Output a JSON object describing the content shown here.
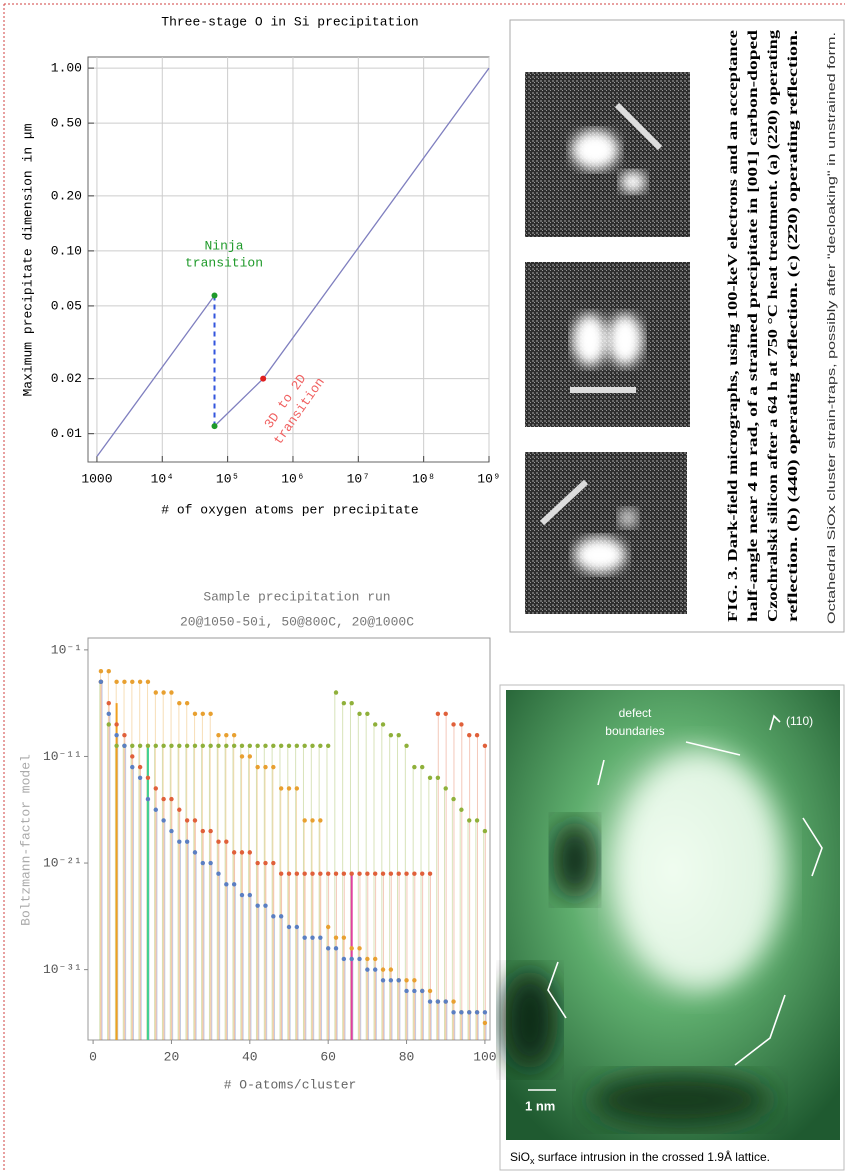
{
  "chart_data": [
    {
      "type": "line",
      "title": "Three-stage O in Si precipitation",
      "x_label": "# of oxygen atoms per precipitate",
      "y_label": "Maximum precipitate dimension in μm",
      "log_x": true,
      "log_y": true,
      "grid": true,
      "xlim": [
        730,
        1000000000
      ],
      "ylim": [
        0.007,
        1.15
      ],
      "xticks": [
        1000,
        {
          "value": 10000,
          "label": "10⁴"
        },
        {
          "value": 100000,
          "label": "10⁵"
        },
        {
          "value": 1000000,
          "label": "10⁶"
        },
        {
          "value": 10000000,
          "label": "10⁷"
        },
        {
          "value": 100000000,
          "label": "10⁸"
        },
        {
          "value": 1000000000,
          "label": "10⁹"
        }
      ],
      "yticks": [
        0.01,
        0.02,
        0.05,
        {
          "value": 0.1,
          "label": "0.10"
        },
        {
          "value": 0.2,
          "label": "0.20"
        },
        {
          "value": 0.5,
          "label": "0.50"
        },
        {
          "value": 1,
          "label": "1.00"
        }
      ],
      "series": [
        {
          "style": "line",
          "color": "#7f7fbf",
          "x": [
            1000,
            63000
          ],
          "values": [
            0.0075,
            0.057
          ]
        },
        {
          "style": "line",
          "color": "#7f7fbf",
          "x": [
            63000,
            350000,
            1000000000
          ],
          "values": [
            0.011,
            0.02,
            1.0
          ]
        },
        {
          "style": "dashed",
          "color": "#3355dd",
          "x": [
            63000,
            63000
          ],
          "values": [
            0.057,
            0.011
          ]
        },
        {
          "style": "points",
          "color": "#1f9a2a",
          "x": [
            63000,
            63000
          ],
          "values": [
            0.057,
            0.011
          ]
        },
        {
          "style": "points",
          "color": "#e02020",
          "x": [
            350000
          ],
          "values": [
            0.02
          ]
        }
      ],
      "annotations": [
        {
          "lines": [
            "Ninja",
            "transition"
          ],
          "color": "#1f9a2a"
        },
        {
          "lines": [
            "3D to 2D",
            "transition"
          ],
          "color": "#f06060"
        }
      ]
    },
    {
      "type": "scatter",
      "title": "Sample precipitation run",
      "subtitle": "20@1050-50i, 50@800C, 20@1000C",
      "x_label": "# O-atoms/cluster",
      "y_label": "Boltzmann-factor model",
      "log_y": true,
      "stems": true,
      "xlim": [
        -1.3,
        101.3
      ],
      "ylim": [
        2.5e-38,
        1.3
      ],
      "xticks": [
        0,
        20,
        40,
        60,
        80,
        100
      ],
      "yticks": [
        {
          "value": 0.1,
          "label": "10⁻¹"
        },
        {
          "value": 1e-11,
          "label": "10⁻¹¹"
        },
        {
          "value": 1e-21,
          "label": "10⁻²¹"
        },
        {
          "value": 1e-31,
          "label": "10⁻³¹"
        }
      ],
      "x": [
        2,
        4,
        6,
        8,
        10,
        12,
        14,
        16,
        18,
        20,
        22,
        24,
        26,
        28,
        30,
        32,
        34,
        36,
        38,
        40,
        42,
        44,
        46,
        48,
        50,
        52,
        54,
        56,
        58,
        60,
        62,
        64,
        66,
        68,
        70,
        72,
        74,
        76,
        78,
        80,
        82,
        84,
        86,
        88,
        90,
        92,
        94,
        96,
        98,
        100
      ],
      "series": [
        {
          "color": "#8fb03a",
          "values": [
            0.0001,
            1e-08,
            1e-10,
            1e-10,
            1e-10,
            1e-10,
            1e-10,
            1e-10,
            1e-10,
            1e-10,
            1e-10,
            1e-10,
            1e-10,
            1e-10,
            1e-10,
            1e-10,
            1e-10,
            1e-10,
            1e-10,
            1e-10,
            1e-10,
            1e-10,
            1e-10,
            1e-10,
            1e-10,
            1e-10,
            1e-10,
            1e-10,
            1e-10,
            1e-10,
            1e-05,
            1e-06,
            1e-06,
            1e-07,
            1e-07,
            1e-08,
            1e-08,
            1e-09,
            1e-09,
            1e-10,
            1e-12,
            1e-12,
            1e-13,
            1e-13,
            1e-14,
            1e-15,
            1e-16,
            1e-17,
            1e-17,
            1e-18
          ]
        },
        {
          "color": "#e8a030",
          "values": [
            0.001,
            0.001,
            0.0001,
            0.0001,
            0.0001,
            0.0001,
            0.0001,
            1e-05,
            1e-05,
            1e-05,
            1e-06,
            1e-06,
            1e-07,
            1e-07,
            1e-07,
            1e-09,
            1e-09,
            1e-09,
            1e-11,
            1e-11,
            1e-12,
            1e-12,
            1e-12,
            1e-14,
            1e-14,
            1e-14,
            1e-17,
            1e-17,
            1e-17,
            1e-27,
            1e-28,
            1e-28,
            1e-29,
            1e-29,
            1e-30,
            1e-30,
            1e-31,
            1e-31,
            1e-32,
            1e-32,
            1e-32,
            1e-33,
            1e-33,
            1e-34,
            1e-34,
            1e-34,
            1e-35,
            1e-35,
            1e-35,
            1e-36
          ]
        },
        {
          "color": "#e0603a",
          "values": [
            0.0001,
            1e-06,
            1e-08,
            1e-09,
            1e-11,
            1e-12,
            1e-13,
            1e-14,
            1e-15,
            1e-15,
            1e-16,
            1e-17,
            1e-17,
            1e-18,
            1e-18,
            1e-19,
            1e-19,
            1e-20,
            1e-20,
            1e-20,
            1e-21,
            1e-21,
            1e-21,
            1e-22,
            1e-22,
            1e-22,
            1e-22,
            1e-22,
            1e-22,
            1e-22,
            1e-22,
            1e-22,
            1e-22,
            1e-22,
            1e-22,
            1e-22,
            1e-22,
            1e-22,
            1e-22,
            1e-22,
            1e-22,
            1e-22,
            1e-22,
            1e-07,
            1e-07,
            1e-08,
            1e-08,
            1e-09,
            1e-09,
            1e-10
          ]
        },
        {
          "color": "#5b7fc2",
          "values": [
            0.0001,
            1e-07,
            1e-09,
            1e-10,
            1e-12,
            1e-13,
            1e-15,
            1e-16,
            1e-17,
            1e-18,
            1e-19,
            1e-19,
            1e-20,
            1e-21,
            1e-21,
            1e-22,
            1e-23,
            1e-23,
            1e-24,
            1e-24,
            1e-25,
            1e-25,
            1e-26,
            1e-26,
            1e-27,
            1e-27,
            1e-28,
            1e-28,
            1e-28,
            1e-29,
            1e-29,
            1e-30,
            1e-30,
            1e-30,
            1e-31,
            1e-31,
            1e-32,
            1e-32,
            1e-32,
            1e-33,
            1e-33,
            1e-33,
            1e-34,
            1e-34,
            1e-34,
            1e-35,
            1e-35,
            1e-35,
            1e-35,
            1e-35
          ]
        }
      ],
      "highlight_lines": [
        {
          "x": 6,
          "value": 1e-06,
          "color": "#f0a020"
        },
        {
          "x": 14,
          "value": 1e-10,
          "color": "#40d090"
        },
        {
          "x": 66,
          "value": 1e-22,
          "color": "#e040a0"
        }
      ]
    }
  ],
  "figures": [
    {
      "caption_lines": [
        "FIG. 3. Dark-field micrographs, using 100-keV electrons and an acceptance",
        "half-angle near 4 m rad, of a strained precipitate in [001] carbon-doped",
        "Czochralski silicon after a 64 h at 750 °C heat treatment. (a) (220) operating",
        "reflection. (b) (440) operating reflection. (c) (2̄20) operating reflection."
      ],
      "side_note": "Octahedral SiOx cluster strain-traps, possibly after \"decloaking\" in unstrained form."
    },
    {
      "labels": [
        "defect",
        "boundaries"
      ],
      "direction": "(110)",
      "scale": "1 nm",
      "caption": [
        "SiO",
        "x",
        " surface intrusion in the crossed 1.9Å lattice."
      ]
    }
  ]
}
